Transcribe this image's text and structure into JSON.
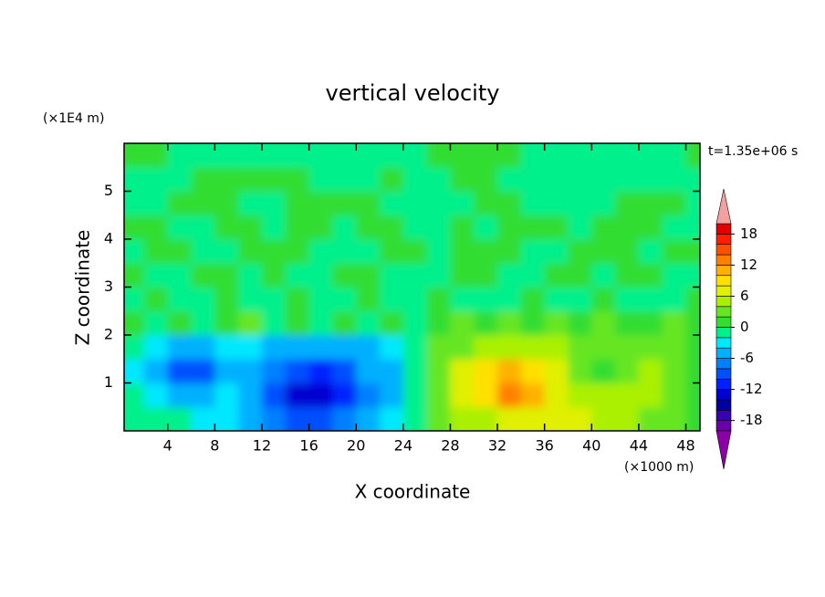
{
  "chart_data": {
    "type": "contour",
    "title": "vertical velocity",
    "x_label": "X coordinate",
    "y_label": "Z coordinate",
    "x_unit": "(×1000 m)",
    "y_unit": "(×1E4 m)",
    "time_label": "t=1.35e+06 s",
    "xlim": [
      0.3,
      49.2
    ],
    "ylim": [
      0,
      6
    ],
    "xticks": [
      4,
      8,
      12,
      16,
      20,
      24,
      28,
      32,
      36,
      40,
      44,
      48
    ],
    "yticks": [
      1,
      2,
      3,
      4,
      5
    ],
    "x": [
      1,
      3,
      5,
      7,
      9,
      11,
      13,
      15,
      17,
      19,
      21,
      23,
      25,
      27,
      29,
      31,
      33,
      35,
      37,
      39,
      41,
      43,
      45,
      47,
      49
    ],
    "z": [
      0.25,
      0.75,
      1.25,
      1.75,
      2.25,
      2.75,
      3.25,
      3.75,
      4.25,
      4.75,
      5.25,
      5.75
    ],
    "values": [
      [
        -1,
        -2,
        -2,
        -3,
        -3,
        -5,
        -7,
        -10,
        -10,
        -8,
        -6,
        -4,
        -1,
        2,
        4,
        5,
        6,
        6,
        6,
        6,
        5,
        4,
        3,
        2,
        1
      ],
      [
        -2,
        -4,
        -5,
        -5,
        -4,
        -6,
        -9,
        -13,
        -13,
        -11,
        -8,
        -5,
        -1,
        3,
        6,
        9,
        12,
        10,
        7,
        5,
        5,
        5,
        4,
        3,
        1
      ],
      [
        -3,
        -6,
        -9,
        -9,
        -6,
        -5,
        -7,
        -10,
        -11,
        -9,
        -6,
        -5,
        -1,
        3,
        6,
        9,
        11,
        9,
        6,
        2,
        1,
        2,
        4,
        3,
        1
      ],
      [
        -1,
        -4,
        -5,
        -5,
        -4,
        -4,
        -5,
        -6,
        -6,
        -5,
        -5,
        -4,
        -1,
        2,
        3,
        4,
        5,
        5,
        4,
        3,
        3,
        3,
        2,
        2,
        1
      ],
      [
        1,
        -1,
        1,
        -1,
        1,
        2,
        -1,
        1,
        -1,
        1,
        -1,
        1,
        -1,
        1,
        2,
        1,
        2,
        1,
        2,
        1,
        2,
        1,
        1,
        2,
        1
      ],
      [
        -1,
        1,
        -1,
        -1,
        1,
        -1,
        -1,
        1,
        -1,
        -1,
        1,
        -1,
        -1,
        1,
        -1,
        -1,
        -1,
        1,
        -1,
        -1,
        1,
        -1,
        -1,
        -1,
        1
      ],
      [
        1,
        -1,
        -1,
        1,
        1,
        -1,
        1,
        -1,
        -1,
        1,
        1,
        -1,
        -1,
        -1,
        1,
        1,
        -1,
        -1,
        1,
        1,
        -1,
        1,
        1,
        -1,
        -1
      ],
      [
        -1,
        1,
        1,
        -1,
        -1,
        1,
        1,
        1,
        -1,
        -1,
        -1,
        1,
        1,
        -1,
        1,
        1,
        1,
        -1,
        -1,
        1,
        1,
        1,
        -1,
        1,
        1
      ],
      [
        1,
        1,
        -1,
        -1,
        1,
        1,
        -1,
        1,
        1,
        -1,
        1,
        1,
        -1,
        -1,
        1,
        -1,
        1,
        1,
        1,
        -1,
        1,
        1,
        1,
        -1,
        -1
      ],
      [
        -1,
        -1,
        1,
        1,
        1,
        -1,
        -1,
        1,
        1,
        1,
        1,
        -1,
        -1,
        -1,
        -1,
        1,
        1,
        -1,
        -1,
        -1,
        -1,
        1,
        1,
        1,
        -1
      ],
      [
        -1,
        -1,
        -1,
        1,
        1,
        1,
        1,
        1,
        -1,
        -1,
        -1,
        1,
        -1,
        -1,
        1,
        1,
        -1,
        -1,
        -1,
        -1,
        -1,
        -1,
        -1,
        -1,
        -1
      ],
      [
        1,
        1,
        -1,
        -1,
        -1,
        -1,
        -1,
        -1,
        -1,
        -1,
        -1,
        -1,
        -1,
        1,
        1,
        1,
        1,
        -1,
        -1,
        -1,
        -1,
        -1,
        -1,
        -1,
        1
      ]
    ],
    "colorbar": {
      "levels": [
        -20,
        -18,
        -16,
        -14,
        -12,
        -10,
        -8,
        -6,
        -4,
        -2,
        0,
        2,
        4,
        6,
        8,
        10,
        12,
        14,
        16,
        18,
        20
      ],
      "colors": [
        "#6a00a8",
        "#3a00b0",
        "#0000a0",
        "#0000d0",
        "#0020ff",
        "#0050ff",
        "#0080ff",
        "#00b0ff",
        "#00e8ff",
        "#00f08c",
        "#33dd33",
        "#66e622",
        "#aaf000",
        "#e0f000",
        "#ffe000",
        "#ffb000",
        "#ff8000",
        "#ff5000",
        "#ff2000",
        "#e00000"
      ],
      "ticks": [
        -18,
        -12,
        -6,
        0,
        6,
        12,
        18
      ],
      "over_color": "#f4a0a0",
      "under_color": "#8a00a8"
    }
  }
}
